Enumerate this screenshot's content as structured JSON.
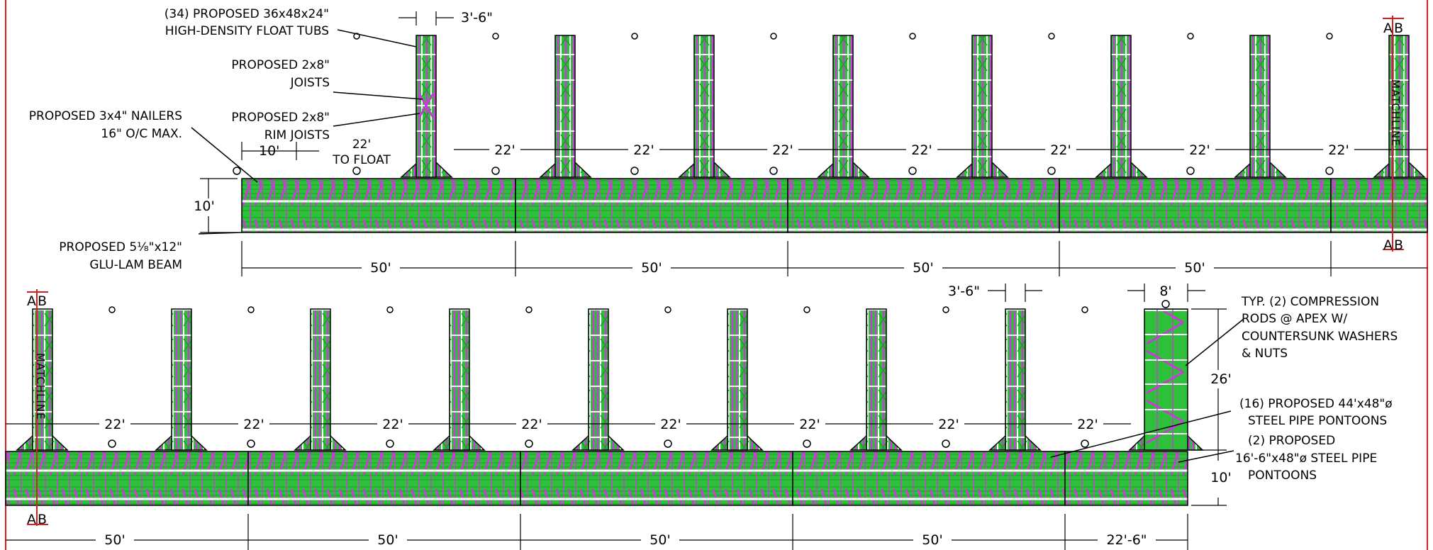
{
  "colors": {
    "deck_green": "#2ec03a",
    "deck_green_dark": "#1f9a2a",
    "joist_magenta": "#c93ad8",
    "stringer_white": "#ffffff",
    "linework": "#000000",
    "matchline_red": "#d81f1f"
  },
  "notes": {
    "float_tubs": [
      "(34) PROPOSED 36x48x24\"",
      "HIGH-DENSITY FLOAT TUBS"
    ],
    "joists": [
      "PROPOSED 2x8\"",
      "JOISTS"
    ],
    "nailers": [
      "PROPOSED 3x4\" NAILERS",
      "16\" O/C MAX."
    ],
    "rim_joists": [
      "PROPOSED 2x8\"",
      "RIM JOISTS"
    ],
    "glulam": [
      "PROPOSED 5⅛\"x12\"",
      "GLU-LAM BEAM"
    ],
    "to_float": [
      "22'",
      "TO FLOAT"
    ],
    "compression_rods": [
      "TYP. (2) COMPRESSION",
      "RODS @ APEX W/",
      "COUNTERSUNK WASHERS",
      "& NUTS"
    ],
    "pontoons_16": [
      "(16) PROPOSED 44'x48\"ø",
      "STEEL PIPE PONTOONS"
    ],
    "pontoons_2": [
      "(2) PROPOSED",
      "16'-6\"x48\"ø STEEL PIPE",
      "PONTOONS"
    ]
  },
  "dims": {
    "finger_width": "3'-6\"",
    "dock_width": "10'",
    "offset_10": "10'",
    "finger_spacing": "22'",
    "section_length": "50'",
    "end_section_length": "22'-6\"",
    "end_width": "8'",
    "end_length": "26'"
  },
  "matchline": {
    "label": "MATCHLINE",
    "a": "A",
    "b": "B"
  }
}
